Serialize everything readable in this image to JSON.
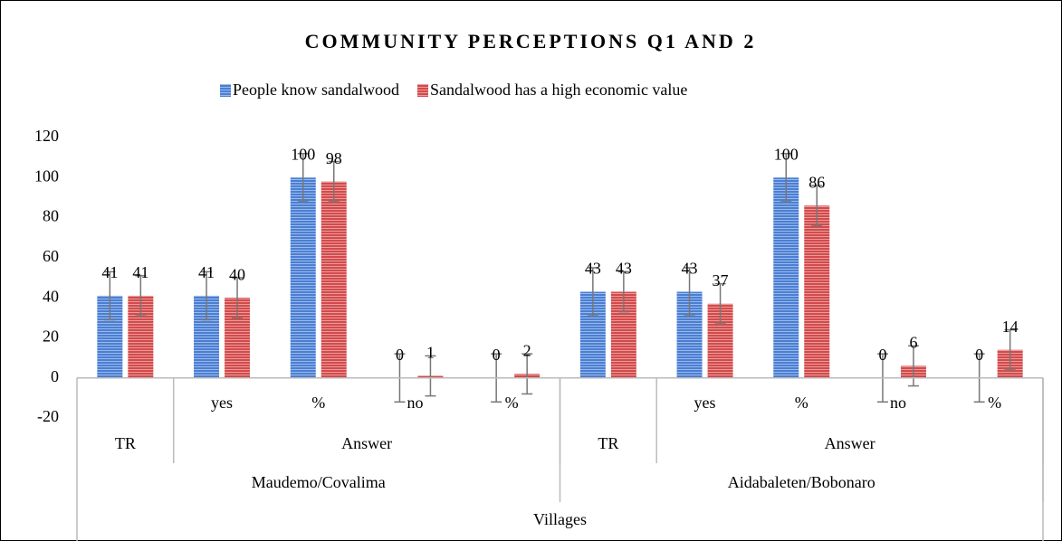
{
  "chart_data": {
    "type": "bar",
    "title": "COMMUNITY PERCEPTIONS Q1 AND 2",
    "categories": [
      null,
      "yes",
      "%",
      "no",
      "%",
      null,
      "yes",
      "%",
      "no",
      "%"
    ],
    "category_groups": [
      {
        "label": "TR",
        "span": 1
      },
      {
        "label": "Answer",
        "span": 4
      },
      {
        "label": "TR",
        "span": 1
      },
      {
        "label": "Answer",
        "span": 4
      }
    ],
    "category_supergroups": [
      {
        "label": "Maudemo/Covalima",
        "span": 5
      },
      {
        "label": "Aidabaleten/Bobonaro",
        "span": 5
      }
    ],
    "x_axis_label": "Villages",
    "series": [
      {
        "name": "People know sandalwood",
        "color": "#4a7fd4",
        "values": [
          41,
          41,
          100,
          0,
          0,
          43,
          43,
          100,
          0,
          0
        ],
        "errors": [
          12,
          12,
          12,
          12,
          12,
          12,
          12,
          12,
          12,
          12
        ]
      },
      {
        "name": "Sandalwood has a high economic value",
        "color": "#d44a4a",
        "values": [
          41,
          40,
          98,
          1,
          2,
          43,
          37,
          86,
          6,
          14
        ],
        "errors": [
          10,
          10,
          10,
          10,
          10,
          10,
          10,
          10,
          10,
          10
        ]
      }
    ],
    "ylim": [
      -20,
      120
    ],
    "yticks": [
      -20,
      0,
      20,
      40,
      60,
      80,
      100,
      120
    ],
    "grid": false,
    "legend": "top"
  }
}
